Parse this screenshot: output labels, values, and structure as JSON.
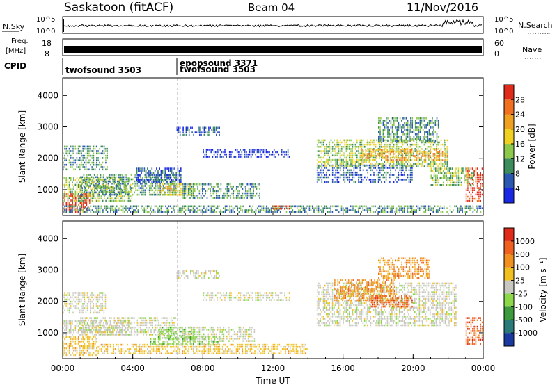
{
  "header": {
    "station": "Saskatoon (fitACF)",
    "beam": "Beam 04",
    "date": "11/Nov/2016"
  },
  "top_panels": {
    "nsky_label": "N.Sky",
    "nsky_ticks": [
      "10^5",
      "10^0"
    ],
    "nsearch_label": "N.Search",
    "nsearch_ticks": [
      "10^5",
      "10^0"
    ],
    "freq_label_1": "Freq.",
    "freq_label_2": "[MHz]",
    "freq_ticks": [
      "18",
      "8"
    ],
    "nave_label": "Nave",
    "nave_ticks": [
      "60",
      "0"
    ],
    "cpid_label": "CPID",
    "cpid_entries": [
      "twofsound 3503",
      "epopsound 3371",
      "twofsound 3503"
    ]
  },
  "chart_data": [
    {
      "type": "heatmap",
      "name": "power",
      "ylabel": "Slant Range [km]",
      "yticks": [
        "1000",
        "2000",
        "3000",
        "4000"
      ],
      "ylim": [
        180,
        4560
      ],
      "xlim": [
        0,
        24
      ],
      "colorbar": {
        "label": "Power [dB]",
        "ticks": [
          "4",
          "8",
          "12",
          "16",
          "20",
          "24",
          "28"
        ],
        "colors": [
          "#1a28e6",
          "#2a58b0",
          "#3d8c5c",
          "#8cc84a",
          "#f0d020",
          "#f0a020",
          "#f07020",
          "#e02a1a"
        ]
      },
      "regions": [
        {
          "t0": 0.0,
          "t1": 1.6,
          "r0": 250,
          "r1": 900,
          "level": 7
        },
        {
          "t0": 0.0,
          "t1": 4.0,
          "r0": 600,
          "r1": 1400,
          "level": 3
        },
        {
          "t0": 0.0,
          "t1": 2.6,
          "r0": 1600,
          "r1": 2400,
          "level": 2
        },
        {
          "t0": 1.0,
          "t1": 6.5,
          "r0": 800,
          "r1": 1500,
          "level": 2
        },
        {
          "t0": 5.5,
          "t1": 7.5,
          "r0": 800,
          "r1": 1200,
          "level": 4
        },
        {
          "t0": 6.8,
          "t1": 11.3,
          "r0": 700,
          "r1": 1200,
          "level": 2
        },
        {
          "t0": 4.2,
          "t1": 6.8,
          "r0": 1200,
          "r1": 1700,
          "level": 1
        },
        {
          "t0": 6.5,
          "t1": 9.0,
          "r0": 2700,
          "r1": 3000,
          "level": 1
        },
        {
          "t0": 8.0,
          "t1": 13.0,
          "r0": 2000,
          "r1": 2300,
          "level": 0
        },
        {
          "t0": 0.0,
          "t1": 24.0,
          "r0": 250,
          "r1": 500,
          "level": 2
        },
        {
          "t0": 12.0,
          "t1": 13.0,
          "r0": 350,
          "r1": 500,
          "level": 7
        },
        {
          "t0": 14.5,
          "t1": 20.0,
          "r0": 1200,
          "r1": 1800,
          "level": 1
        },
        {
          "t0": 14.5,
          "t1": 22.0,
          "r0": 1700,
          "r1": 2600,
          "level": 3
        },
        {
          "t0": 17.0,
          "t1": 22.0,
          "r0": 1900,
          "r1": 2300,
          "level": 5
        },
        {
          "t0": 18.0,
          "t1": 21.5,
          "r0": 2500,
          "r1": 3300,
          "level": 2
        },
        {
          "t0": 23.0,
          "t1": 24.0,
          "r0": 600,
          "r1": 1700,
          "level": 7
        },
        {
          "t0": 21.0,
          "t1": 23.5,
          "r0": 1100,
          "r1": 1700,
          "level": 3
        }
      ]
    },
    {
      "type": "heatmap",
      "name": "velocity",
      "ylabel": "Slant Range [km]",
      "yticks": [
        "1000",
        "2000",
        "3000",
        "4000"
      ],
      "ylim": [
        180,
        4560
      ],
      "xlim": [
        0,
        24
      ],
      "xticks": [
        "00:00",
        "04:00",
        "08:00",
        "12:00",
        "16:00",
        "20:00",
        "00:00"
      ],
      "xlabel": "Time UT",
      "colorbar": {
        "label": "Velocity [m s⁻¹]",
        "ticks": [
          "1000",
          "500",
          "100",
          "25",
          "-25",
          "-100",
          "-500",
          "-1000"
        ],
        "colors": [
          "#1a3aa0",
          "#2a7a7a",
          "#3c9a3c",
          "#8cd84a",
          "#c8c8c0",
          "#f0c020",
          "#f09020",
          "#f06020",
          "#e02a1a"
        ]
      },
      "regions": [
        {
          "t0": 0.0,
          "t1": 2.0,
          "r0": 250,
          "r1": 900,
          "level": 5
        },
        {
          "t0": 0.0,
          "t1": 4.0,
          "r0": 900,
          "r1": 1400,
          "level": 4
        },
        {
          "t0": 0.0,
          "t1": 2.5,
          "r0": 1600,
          "r1": 2300,
          "level": 4
        },
        {
          "t0": 1.0,
          "t1": 6.5,
          "r0": 900,
          "r1": 1500,
          "level": 4
        },
        {
          "t0": 5.5,
          "t1": 7.5,
          "r0": 800,
          "r1": 1200,
          "level": 3
        },
        {
          "t0": 6.8,
          "t1": 11.0,
          "r0": 700,
          "r1": 1200,
          "level": 4
        },
        {
          "t0": 6.5,
          "t1": 9.0,
          "r0": 2700,
          "r1": 3000,
          "level": 4
        },
        {
          "t0": 8.0,
          "t1": 13.0,
          "r0": 2000,
          "r1": 2300,
          "level": 4
        },
        {
          "t0": 2.0,
          "t1": 14.0,
          "r0": 300,
          "r1": 650,
          "level": 5
        },
        {
          "t0": 14.5,
          "t1": 22.5,
          "r0": 1200,
          "r1": 2600,
          "level": 4
        },
        {
          "t0": 15.5,
          "t1": 19.0,
          "r0": 2000,
          "r1": 2700,
          "level": 6
        },
        {
          "t0": 18.0,
          "t1": 21.0,
          "r0": 2700,
          "r1": 3400,
          "level": 6
        },
        {
          "t0": 23.0,
          "t1": 24.0,
          "r0": 600,
          "r1": 1500,
          "level": 7
        },
        {
          "t0": 5.0,
          "t1": 9.0,
          "r0": 600,
          "r1": 900,
          "level": 3
        },
        {
          "t0": 17.5,
          "t1": 20.0,
          "r0": 1800,
          "r1": 2200,
          "level": 7
        }
      ]
    }
  ]
}
